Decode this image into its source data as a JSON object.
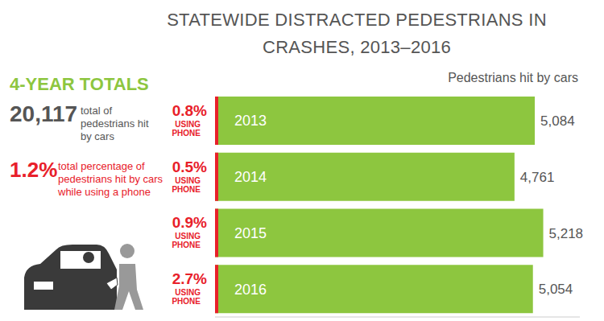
{
  "chart_data": {
    "type": "bar",
    "title": "STATEWIDE DISTRACTED PEDESTRIANS IN CRASHES, 2013–2016",
    "subtitle": "Pedestrians hit by cars",
    "categories": [
      "2013",
      "2014",
      "2015",
      "2016"
    ],
    "values": [
      5084,
      4761,
      5218,
      5054
    ],
    "value_labels": [
      "5,084",
      "4,761",
      "5,218",
      "5,054"
    ],
    "color": "#8dc63f",
    "orientation": "horizontal",
    "data_labels": true,
    "tick_labels": false,
    "xlim": [
      0,
      5800
    ],
    "phone_share": {
      "label": "USING PHONE",
      "color": "#e8202a",
      "values": [
        0.8,
        0.5,
        0.9,
        2.7
      ],
      "value_labels": [
        "0.8%",
        "0.5%",
        "0.9%",
        "2.7%"
      ]
    },
    "annotations": {
      "heading": "4-YEAR TOTALS",
      "items": [
        {
          "value": 20117,
          "label": "20,117",
          "text": "total of pedestrians hit by cars"
        },
        {
          "value": 1.2,
          "label": "1.2%",
          "text": "total percentage of pedestrians hit by cars while using a phone"
        }
      ]
    }
  }
}
